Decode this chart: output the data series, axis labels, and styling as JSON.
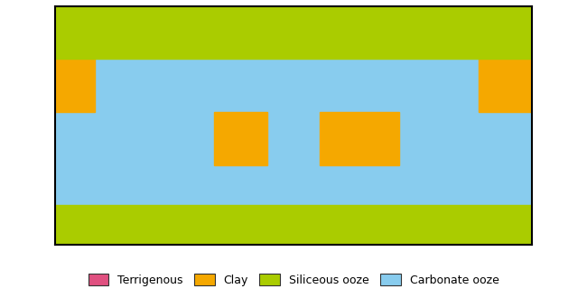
{
  "legend_items": [
    {
      "label": "Terrigenous",
      "color": "#E05080"
    },
    {
      "label": "Clay",
      "color": "#F5A800"
    },
    {
      "label": "Siliceous ooze",
      "color": "#AACC00"
    },
    {
      "label": "Carbonate ooze",
      "color": "#88CCEE"
    }
  ],
  "land_color": "#AAAAAA",
  "border_color": "#333333",
  "background_color": "#FFFFFF",
  "map_border_color": "#333333",
  "figsize": [
    6.5,
    3.3
  ],
  "dpi": 100
}
